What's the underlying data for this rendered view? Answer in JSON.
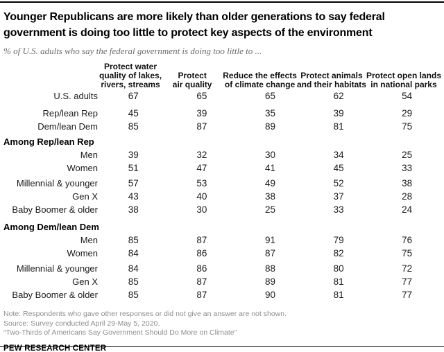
{
  "colors": {
    "text_primary": "#1a1a1a",
    "note_gray": "#8e8e8e",
    "rule_black": "#000000"
  },
  "header": {
    "title": "Younger Republicans are more likely than older generations to say federal\ngovernment is doing too little to protect key aspects of the environment",
    "subtitle": "% of U.S. adults who say the federal government is doing too little to ..."
  },
  "display": {
    "col_headers": [
      "Protect water\nquality of lakes,\nrivers, streams",
      "Protect\nair quality",
      "Reduce the effects\nof climate change",
      "Protect animals\nand their habitats",
      "Protect open lands\nin national parks"
    ]
  },
  "chart_data": {
    "type": "table",
    "title": "Younger Republicans are more likely than older generations to say federal government is doing too little to protect key aspects of the environment",
    "subtitle": "% of U.S. adults who say the federal government is doing too little to ...",
    "columns": [
      "Protect water quality of lakes, rivers, streams",
      "Protect air quality",
      "Reduce the effects of climate change",
      "Protect animals and their habitats",
      "Protect open lands in national parks"
    ],
    "rows": [
      {
        "label": "U.S. adults",
        "values": [
          67,
          65,
          65,
          62,
          54
        ]
      },
      {
        "label": "Rep/lean Rep",
        "values": [
          45,
          39,
          35,
          39,
          29
        ]
      },
      {
        "label": "Dem/lean Dem",
        "values": [
          85,
          87,
          89,
          81,
          75
        ]
      },
      {
        "section": "Among Rep/lean Rep"
      },
      {
        "label": "Men",
        "values": [
          39,
          32,
          30,
          34,
          25
        ]
      },
      {
        "label": "Women",
        "values": [
          51,
          47,
          41,
          45,
          33
        ]
      },
      {
        "label": "Millennial & younger",
        "values": [
          57,
          53,
          49,
          52,
          38
        ]
      },
      {
        "label": "Gen X",
        "values": [
          43,
          40,
          38,
          37,
          28
        ]
      },
      {
        "label": "Baby Boomer & older",
        "values": [
          38,
          30,
          25,
          33,
          24
        ]
      },
      {
        "section": "Among Dem/lean Dem"
      },
      {
        "label": "Men",
        "values": [
          85,
          87,
          91,
          79,
          76
        ]
      },
      {
        "label": "Women",
        "values": [
          84,
          86,
          87,
          82,
          75
        ]
      },
      {
        "label": "Millennial & younger",
        "values": [
          84,
          86,
          88,
          80,
          72
        ]
      },
      {
        "label": "Gen X",
        "values": [
          85,
          87,
          89,
          81,
          77
        ]
      },
      {
        "label": "Baby Boomer & older",
        "values": [
          85,
          87,
          90,
          81,
          77
        ]
      }
    ]
  },
  "footer": {
    "note": "Note: Respondents who gave other responses or did not give an answer are not shown.",
    "source": "Source: Survey conducted April 29-May 5, 2020.",
    "report": "“Two-Thirds of Americans Say Government Should Do More on Climate”",
    "brand": "PEW RESEARCH CENTER"
  }
}
